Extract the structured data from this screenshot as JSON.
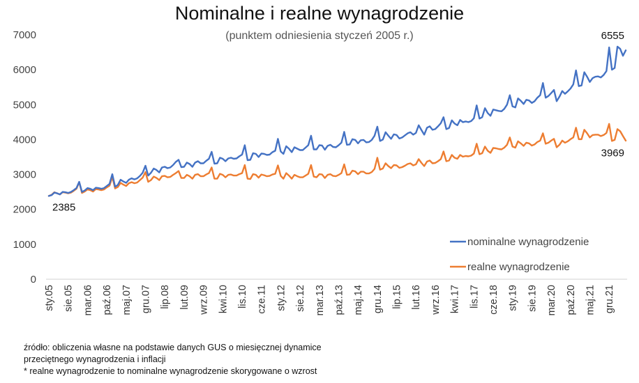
{
  "chart_data": {
    "type": "line",
    "title": "Nominalne i realne wynagrodzenie",
    "subtitle": "(punktem odniesienia styczeń 2005 r.)",
    "ylim": [
      0,
      7000
    ],
    "yticks": [
      0,
      1000,
      2000,
      3000,
      4000,
      5000,
      6000,
      7000
    ],
    "x_tick_labels": [
      "sty.05",
      "sie.05",
      "mar.06",
      "paź.06",
      "maj.07",
      "gru.07",
      "lip.08",
      "lut.09",
      "wrz.09",
      "kwi.10",
      "lis.10",
      "cze.11",
      "sty.12",
      "sie.12",
      "mar.13",
      "paź.13",
      "maj.14",
      "gru.14",
      "lip.15",
      "lut.16",
      "wrz.16",
      "kwi.17",
      "lis.17",
      "cze.18",
      "sty.19",
      "sie.19",
      "mar.20",
      "paź.20",
      "maj.21",
      "gru.21"
    ],
    "x_start": "2005-01",
    "x_end": "2022-05",
    "grid": false,
    "legend_position": "right",
    "annotations": [
      {
        "text": "2385",
        "series": "nominalne wynagrodzenie",
        "date": "2005-01"
      },
      {
        "text": "6555",
        "series": "nominalne wynagrodzenie",
        "date": "2022-05"
      },
      {
        "text": "3969",
        "series": "realne wynagrodzenie",
        "date": "2022-05"
      }
    ],
    "series": [
      {
        "name": "nominalne wynagrodzenie",
        "color": "#4472C4",
        "values": [
          2385,
          2410,
          2480,
          2460,
          2430,
          2500,
          2490,
          2470,
          2500,
          2550,
          2610,
          2790,
          2500,
          2540,
          2610,
          2590,
          2550,
          2620,
          2610,
          2590,
          2610,
          2670,
          2730,
          3010,
          2650,
          2700,
          2850,
          2800,
          2760,
          2850,
          2890,
          2860,
          2890,
          2960,
          3050,
          3250,
          2970,
          3050,
          3170,
          3130,
          3060,
          3200,
          3220,
          3180,
          3200,
          3270,
          3360,
          3420,
          3210,
          3220,
          3340,
          3300,
          3220,
          3340,
          3380,
          3320,
          3320,
          3390,
          3450,
          3650,
          3310,
          3320,
          3480,
          3450,
          3380,
          3460,
          3480,
          3450,
          3460,
          3520,
          3570,
          3840,
          3410,
          3420,
          3610,
          3590,
          3500,
          3600,
          3590,
          3560,
          3570,
          3640,
          3680,
          4020,
          3660,
          3590,
          3810,
          3740,
          3640,
          3780,
          3740,
          3700,
          3700,
          3770,
          3840,
          4110,
          3720,
          3720,
          3840,
          3830,
          3710,
          3820,
          3850,
          3790,
          3780,
          3840,
          3910,
          4220,
          3850,
          3860,
          4010,
          3990,
          3890,
          3980,
          3990,
          3920,
          3930,
          3990,
          4110,
          4370,
          3960,
          4000,
          4210,
          4110,
          4020,
          4150,
          4130,
          4030,
          4060,
          4120,
          4180,
          4210,
          4140,
          4190,
          4410,
          4270,
          4140,
          4340,
          4380,
          4280,
          4300,
          4380,
          4470,
          4640,
          4300,
          4330,
          4550,
          4460,
          4410,
          4560,
          4500,
          4520,
          4500,
          4530,
          4610,
          4980,
          4600,
          4640,
          4900,
          4760,
          4680,
          4860,
          4840,
          4820,
          4810,
          4880,
          5000,
          5270,
          4950,
          4920,
          5180,
          5110,
          5020,
          5140,
          5120,
          5050,
          5100,
          5200,
          5270,
          5620,
          5200,
          5250,
          5330,
          5420,
          5100,
          5230,
          5390,
          5310,
          5380,
          5460,
          5580,
          5980,
          5530,
          5550,
          5930,
          5800,
          5650,
          5760,
          5800,
          5810,
          5780,
          5850,
          5960,
          6640,
          6000,
          6050,
          6660,
          6600,
          6400,
          6555
        ]
      },
      {
        "name": "realne wynagrodzenie",
        "color": "#ED7D31",
        "values": [
          2385,
          2420,
          2490,
          2460,
          2430,
          2490,
          2480,
          2460,
          2480,
          2530,
          2590,
          2780,
          2470,
          2510,
          2570,
          2550,
          2510,
          2580,
          2570,
          2550,
          2570,
          2630,
          2680,
          2930,
          2600,
          2640,
          2760,
          2710,
          2670,
          2750,
          2780,
          2750,
          2770,
          2840,
          2910,
          3070,
          2790,
          2840,
          2940,
          2900,
          2840,
          2950,
          2960,
          2920,
          2930,
          2990,
          3040,
          3100,
          2900,
          2900,
          2990,
          2950,
          2880,
          2990,
          3010,
          2950,
          2950,
          3000,
          3040,
          3200,
          2880,
          2880,
          3020,
          2990,
          2920,
          2990,
          3000,
          2970,
          2970,
          3010,
          3040,
          3270,
          2880,
          2870,
          3010,
          2990,
          2910,
          3000,
          2980,
          2950,
          2960,
          3000,
          3020,
          3260,
          2960,
          2880,
          3040,
          2970,
          2880,
          2990,
          2950,
          2920,
          2920,
          2970,
          3020,
          3270,
          2940,
          2920,
          3010,
          3000,
          2900,
          2990,
          3010,
          2960,
          2950,
          2990,
          3040,
          3290,
          2990,
          3000,
          3110,
          3090,
          3010,
          3080,
          3080,
          3030,
          3030,
          3070,
          3160,
          3480,
          3140,
          3170,
          3320,
          3240,
          3180,
          3270,
          3260,
          3190,
          3210,
          3250,
          3300,
          3320,
          3260,
          3290,
          3440,
          3330,
          3240,
          3370,
          3400,
          3320,
          3330,
          3380,
          3440,
          3660,
          3380,
          3400,
          3560,
          3480,
          3450,
          3560,
          3510,
          3530,
          3520,
          3540,
          3600,
          3880,
          3580,
          3610,
          3800,
          3680,
          3620,
          3760,
          3750,
          3730,
          3720,
          3770,
          3850,
          4060,
          3800,
          3770,
          3950,
          3890,
          3820,
          3910,
          3890,
          3830,
          3860,
          3930,
          3970,
          4180,
          3880,
          3910,
          3970,
          4020,
          3780,
          3850,
          3970,
          3910,
          3950,
          4010,
          4060,
          4340,
          4010,
          4010,
          4280,
          4180,
          4060,
          4130,
          4140,
          4140,
          4100,
          4130,
          4190,
          4450,
          3960,
          3990,
          4300,
          4240,
          4100,
          3969
        ]
      }
    ]
  },
  "source_note": [
    "źródło: obliczenia własne na podstawie danych GUS o miesięcznej dynamice",
    "przeciętnego wynagrodzenia i inflacji",
    "* realne wynagrodzenie to nominalne wynagrodzenie skorygowane o wzrost"
  ]
}
